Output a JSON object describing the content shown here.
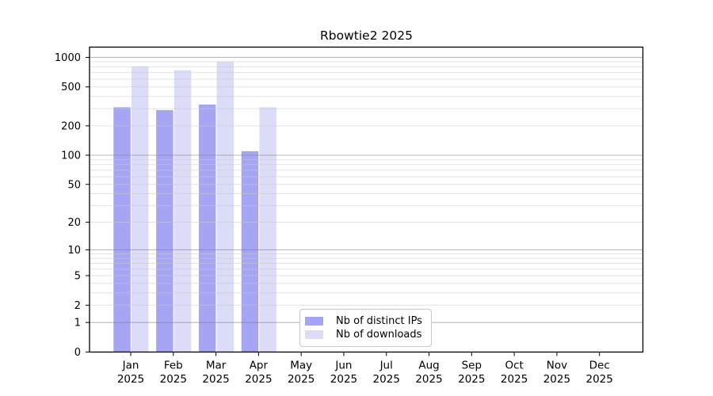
{
  "chart_data": {
    "type": "bar",
    "title": "Rbowtie2 2025",
    "categories": [
      "Jan",
      "Feb",
      "Mar",
      "Apr",
      "May",
      "Jun",
      "Jul",
      "Aug",
      "Sep",
      "Oct",
      "Nov",
      "Dec"
    ],
    "category_year_label": "2025",
    "series": [
      {
        "name": "Nb of distinct IPs",
        "color": "#a5a5f4",
        "values": [
          310,
          290,
          330,
          110,
          null,
          null,
          null,
          null,
          null,
          null,
          null,
          null
        ]
      },
      {
        "name": "Nb of downloads",
        "color": "#dcdcf9",
        "values": [
          810,
          740,
          910,
          310,
          null,
          null,
          null,
          null,
          null,
          null,
          null,
          null
        ]
      }
    ],
    "y_ticks": [
      0,
      1,
      2,
      5,
      10,
      20,
      50,
      100,
      200,
      500,
      1000
    ],
    "y_scale": "log10(1+y)",
    "ylim": [
      0,
      1270
    ],
    "xlabel": "",
    "ylabel": "",
    "grid": "horizontal major and minor gridlines",
    "legend_position": "inside lower-center-left"
  },
  "colors": {
    "background": "#ffffff",
    "axis_frame": "#000000",
    "tick_text": "#000000",
    "major_grid": "rgba(125,125,125,0.55)",
    "minor_grid": "rgba(203,203,203,0.55)",
    "legend_border": "#c8c8c8",
    "legend_bg": "#ffffff"
  }
}
